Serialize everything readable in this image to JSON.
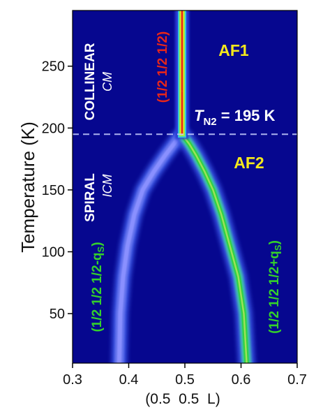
{
  "chart_data": {
    "type": "heatmap",
    "xlabel": "(0.5  0.5  L)",
    "ylabel": "Temperature (K)",
    "xlim": [
      0.3,
      0.7
    ],
    "ylim": [
      10,
      295
    ],
    "x_ticks": [
      "0.3",
      "0.4",
      "0.5",
      "0.6",
      "0.7"
    ],
    "y_ticks": [
      "50",
      "100",
      "150",
      "200",
      "250"
    ],
    "transition": {
      "label_T": "T",
      "label_sub": "N2",
      "label_rest": " = 195 K",
      "temperature": 195
    },
    "regions": [
      {
        "phase": "AF1",
        "order": "COLLINEAR",
        "type": "CM"
      },
      {
        "phase": "AF2",
        "order": "SPIRAL",
        "type": "ICM"
      }
    ],
    "peak_labels": {
      "center": "(1/2 1/2 1/2)",
      "left": "(1/2 1/2 1/2-q",
      "right": "(1/2 1/2 1/2+q",
      "sub": "S",
      "close": ")"
    },
    "series": [
      {
        "name": "(1/2 1/2 1/2)",
        "color": "#e8261a",
        "x": [
          0.495,
          0.495,
          0.495,
          0.495
        ],
        "y": [
          195,
          230,
          260,
          295
        ]
      },
      {
        "name": "(1/2 1/2 1/2-qS)",
        "color": "#8a90ff",
        "x": [
          0.383,
          0.385,
          0.39,
          0.398,
          0.41,
          0.425,
          0.445,
          0.465,
          0.48,
          0.49
        ],
        "y": [
          10,
          50,
          80,
          105,
          130,
          150,
          165,
          178,
          187,
          193
        ]
      },
      {
        "name": "(1/2 1/2 1/2+qS)",
        "color": "#2fd23c",
        "x": [
          0.61,
          0.605,
          0.595,
          0.58,
          0.565,
          0.55,
          0.535,
          0.52,
          0.508,
          0.498
        ],
        "y": [
          10,
          50,
          80,
          105,
          130,
          150,
          165,
          178,
          187,
          193
        ]
      }
    ],
    "colors": {
      "background": "#06078f",
      "phase_label": "#f5e81c",
      "center_label": "#e8261a",
      "incommensurate_label": "#34d12b",
      "text": "#ffffff"
    }
  }
}
